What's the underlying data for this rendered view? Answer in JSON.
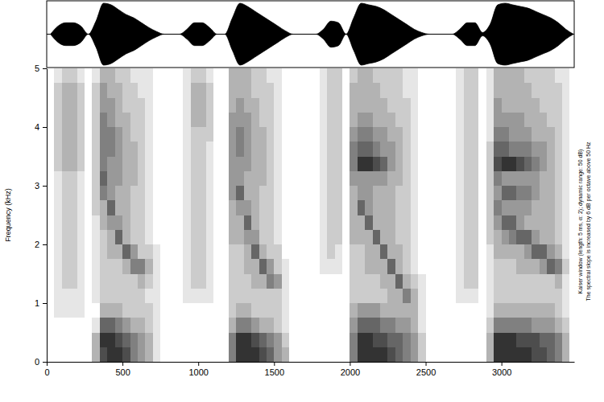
{
  "chart_data": {
    "type": "heatmap",
    "y_label": "Frequency (kHz)",
    "annotations": [
      "Kaiser window (length: 5 ms, α: 2); dynamic range: 50 dB)",
      "The spectral slope is increased by 6 dB per octave above 50 Hz"
    ],
    "xlim": [
      0,
      3480
    ],
    "xticks": [
      0,
      500,
      1000,
      1500,
      2000,
      2500,
      3000
    ],
    "ylim": [
      0,
      5
    ],
    "yticks": [
      0,
      1,
      2,
      3,
      4,
      5
    ],
    "zlim": [
      0,
      9
    ],
    "x_bins": [
      0,
      50,
      100,
      150,
      200,
      250,
      300,
      350,
      400,
      450,
      500,
      550,
      600,
      650,
      700,
      750,
      800,
      850,
      900,
      950,
      1000,
      1050,
      1100,
      1150,
      1200,
      1250,
      1300,
      1350,
      1400,
      1450,
      1500,
      1550,
      1600,
      1650,
      1700,
      1750,
      1800,
      1850,
      1900,
      1950,
      2000,
      2050,
      2100,
      2150,
      2200,
      2250,
      2300,
      2350,
      2400,
      2450,
      2500,
      2550,
      2600,
      2650,
      2700,
      2750,
      2800,
      2850,
      2900,
      2950,
      3000,
      3050,
      3100,
      3150,
      3200,
      3250,
      3300,
      3350,
      3400,
      3450,
      3500
    ],
    "y_bins": [
      0,
      0.25,
      0.5,
      0.75,
      1,
      1.25,
      1.5,
      1.75,
      2,
      2.25,
      2.5,
      2.75,
      3,
      3.25,
      3.5,
      3.75,
      4,
      4.25,
      4.5,
      4.75,
      5
    ],
    "z": [
      [
        0,
        0,
        0,
        0,
        0,
        0,
        0,
        0,
        0,
        0,
        0,
        0,
        0,
        0,
        0,
        0,
        0,
        0,
        0,
        0
      ],
      [
        0,
        0,
        0,
        1,
        1,
        1,
        1,
        1,
        1,
        1,
        1,
        1,
        1,
        2,
        2,
        2,
        2,
        2,
        2,
        1
      ],
      [
        0,
        0,
        0,
        1,
        1,
        2,
        2,
        2,
        2,
        2,
        2,
        2,
        2,
        3,
        3,
        3,
        3,
        3,
        3,
        2
      ],
      [
        0,
        0,
        0,
        1,
        1,
        2,
        2,
        2,
        2,
        2,
        2,
        2,
        2,
        3,
        3,
        3,
        3,
        3,
        3,
        2
      ],
      [
        0,
        0,
        0,
        1,
        1,
        1,
        1,
        1,
        1,
        1,
        1,
        1,
        1,
        2,
        2,
        2,
        2,
        2,
        2,
        1
      ],
      [
        0,
        0,
        0,
        0,
        0,
        0,
        0,
        0,
        0,
        0,
        0,
        0,
        0,
        0,
        0,
        0,
        0,
        0,
        0,
        0
      ],
      [
        3,
        3,
        1,
        0,
        1,
        1,
        1,
        1,
        1,
        1,
        2,
        2,
        2,
        2,
        2,
        2,
        2,
        2,
        2,
        1
      ],
      [
        7,
        8,
        6,
        3,
        2,
        2,
        2,
        2,
        2,
        3,
        3,
        5,
        6,
        5,
        5,
        5,
        5,
        4,
        4,
        3
      ],
      [
        8,
        8,
        6,
        3,
        2,
        2,
        2,
        3,
        3,
        4,
        6,
        4,
        4,
        4,
        5,
        5,
        4,
        4,
        3,
        3
      ],
      [
        8,
        7,
        5,
        3,
        2,
        2,
        2,
        3,
        6,
        4,
        3,
        3,
        4,
        4,
        4,
        4,
        3,
        3,
        3,
        2
      ],
      [
        7,
        6,
        4,
        2,
        2,
        2,
        3,
        6,
        3,
        3,
        3,
        3,
        3,
        3,
        3,
        3,
        3,
        2,
        2,
        2
      ],
      [
        5,
        5,
        3,
        2,
        2,
        2,
        5,
        4,
        2,
        2,
        2,
        2,
        3,
        3,
        3,
        2,
        2,
        2,
        2,
        1
      ],
      [
        4,
        4,
        3,
        2,
        2,
        3,
        5,
        2,
        2,
        2,
        2,
        2,
        2,
        2,
        2,
        2,
        2,
        2,
        1,
        1
      ],
      [
        3,
        3,
        2,
        2,
        1,
        2,
        3,
        2,
        1,
        1,
        1,
        1,
        1,
        1,
        1,
        1,
        1,
        1,
        1,
        1
      ],
      [
        1,
        1,
        1,
        1,
        1,
        1,
        1,
        1,
        0,
        0,
        0,
        0,
        0,
        0,
        0,
        0,
        0,
        0,
        0,
        0
      ],
      [
        0,
        0,
        0,
        0,
        0,
        0,
        0,
        0,
        0,
        0,
        0,
        0,
        0,
        0,
        0,
        0,
        0,
        0,
        0,
        0
      ],
      [
        0,
        0,
        0,
        0,
        0,
        0,
        0,
        0,
        0,
        0,
        0,
        0,
        0,
        0,
        0,
        0,
        0,
        0,
        0,
        0
      ],
      [
        0,
        0,
        0,
        0,
        0,
        0,
        0,
        0,
        0,
        0,
        0,
        0,
        0,
        0,
        0,
        0,
        0,
        0,
        0,
        0
      ],
      [
        0,
        0,
        0,
        0,
        1,
        1,
        1,
        1,
        1,
        1,
        1,
        1,
        1,
        1,
        1,
        1,
        1,
        1,
        1,
        1
      ],
      [
        0,
        0,
        0,
        0,
        1,
        2,
        2,
        2,
        2,
        2,
        2,
        2,
        2,
        2,
        2,
        2,
        3,
        3,
        3,
        2
      ],
      [
        0,
        0,
        0,
        0,
        1,
        2,
        2,
        2,
        2,
        2,
        2,
        2,
        2,
        2,
        2,
        2,
        3,
        3,
        3,
        2
      ],
      [
        0,
        0,
        0,
        0,
        1,
        1,
        1,
        1,
        1,
        1,
        1,
        1,
        1,
        1,
        1,
        2,
        2,
        2,
        2,
        1
      ],
      [
        0,
        0,
        0,
        0,
        0,
        0,
        0,
        0,
        0,
        0,
        0,
        0,
        0,
        0,
        0,
        0,
        0,
        0,
        0,
        0
      ],
      [
        0,
        0,
        0,
        0,
        0,
        0,
        0,
        0,
        0,
        0,
        0,
        0,
        0,
        0,
        0,
        0,
        0,
        0,
        0,
        0
      ],
      [
        5,
        5,
        3,
        2,
        2,
        2,
        2,
        2,
        3,
        3,
        3,
        4,
        4,
        4,
        4,
        4,
        4,
        3,
        3,
        3
      ],
      [
        8,
        8,
        5,
        3,
        2,
        2,
        2,
        2,
        3,
        3,
        4,
        6,
        4,
        4,
        5,
        5,
        4,
        4,
        3,
        3
      ],
      [
        8,
        8,
        5,
        3,
        2,
        2,
        3,
        3,
        4,
        6,
        4,
        3,
        3,
        4,
        4,
        4,
        4,
        3,
        3,
        3
      ],
      [
        8,
        7,
        4,
        2,
        2,
        3,
        3,
        6,
        4,
        3,
        3,
        3,
        3,
        3,
        3,
        3,
        3,
        3,
        2,
        2
      ],
      [
        7,
        6,
        3,
        2,
        2,
        3,
        6,
        3,
        2,
        2,
        2,
        2,
        3,
        3,
        3,
        3,
        2,
        2,
        2,
        2
      ],
      [
        6,
        5,
        3,
        2,
        2,
        5,
        4,
        2,
        2,
        2,
        2,
        2,
        2,
        2,
        2,
        2,
        2,
        2,
        2,
        1
      ],
      [
        4,
        4,
        2,
        2,
        2,
        4,
        2,
        2,
        1,
        1,
        1,
        1,
        1,
        1,
        1,
        1,
        1,
        1,
        1,
        1
      ],
      [
        3,
        2,
        1,
        1,
        1,
        1,
        1,
        0,
        0,
        0,
        0,
        0,
        0,
        0,
        0,
        0,
        0,
        0,
        0,
        0
      ],
      [
        0,
        0,
        0,
        0,
        0,
        0,
        0,
        0,
        0,
        0,
        0,
        0,
        0,
        0,
        0,
        0,
        0,
        0,
        0,
        0
      ],
      [
        0,
        0,
        0,
        0,
        0,
        0,
        0,
        0,
        0,
        0,
        0,
        0,
        0,
        0,
        0,
        0,
        0,
        0,
        0,
        0
      ],
      [
        0,
        0,
        0,
        0,
        0,
        0,
        0,
        0,
        0,
        0,
        0,
        0,
        0,
        0,
        0,
        0,
        0,
        0,
        0,
        0
      ],
      [
        0,
        0,
        0,
        0,
        0,
        0,
        0,
        0,
        0,
        0,
        0,
        0,
        0,
        0,
        0,
        0,
        0,
        0,
        0,
        0
      ],
      [
        0,
        0,
        0,
        0,
        0,
        0,
        1,
        1,
        1,
        1,
        1,
        1,
        1,
        1,
        1,
        1,
        1,
        1,
        1,
        1
      ],
      [
        0,
        0,
        0,
        0,
        0,
        0,
        1,
        2,
        2,
        2,
        2,
        2,
        2,
        2,
        2,
        2,
        2,
        2,
        2,
        2
      ],
      [
        0,
        0,
        0,
        0,
        0,
        0,
        1,
        1,
        2,
        2,
        2,
        2,
        2,
        2,
        2,
        2,
        2,
        2,
        2,
        2
      ],
      [
        0,
        0,
        0,
        0,
        0,
        0,
        0,
        0,
        0,
        0,
        0,
        0,
        0,
        0,
        0,
        0,
        0,
        0,
        0,
        0
      ],
      [
        5,
        5,
        4,
        3,
        2,
        2,
        2,
        2,
        3,
        3,
        3,
        3,
        4,
        5,
        5,
        4,
        3,
        3,
        3,
        2
      ],
      [
        8,
        8,
        6,
        4,
        2,
        2,
        2,
        2,
        3,
        3,
        6,
        4,
        4,
        8,
        6,
        5,
        4,
        3,
        3,
        3
      ],
      [
        8,
        8,
        6,
        4,
        2,
        2,
        3,
        3,
        3,
        6,
        4,
        4,
        4,
        8,
        6,
        5,
        4,
        3,
        3,
        3
      ],
      [
        8,
        7,
        6,
        4,
        2,
        2,
        3,
        3,
        6,
        3,
        3,
        3,
        4,
        7,
        5,
        4,
        3,
        3,
        3,
        2
      ],
      [
        8,
        7,
        5,
        3,
        2,
        3,
        3,
        6,
        3,
        3,
        3,
        3,
        4,
        6,
        4,
        4,
        3,
        3,
        2,
        2
      ],
      [
        7,
        6,
        5,
        3,
        3,
        3,
        6,
        3,
        3,
        3,
        3,
        3,
        3,
        4,
        4,
        3,
        3,
        2,
        2,
        2
      ],
      [
        6,
        6,
        4,
        3,
        3,
        6,
        3,
        3,
        2,
        2,
        2,
        2,
        3,
        3,
        3,
        3,
        2,
        2,
        2,
        2
      ],
      [
        5,
        5,
        4,
        3,
        5,
        3,
        2,
        2,
        2,
        2,
        2,
        2,
        2,
        2,
        2,
        2,
        2,
        2,
        1,
        1
      ],
      [
        4,
        4,
        3,
        3,
        3,
        2,
        1,
        1,
        1,
        1,
        1,
        1,
        1,
        1,
        1,
        1,
        1,
        1,
        1,
        1
      ],
      [
        2,
        2,
        1,
        1,
        1,
        1,
        0,
        0,
        0,
        0,
        0,
        0,
        0,
        0,
        0,
        0,
        0,
        0,
        0,
        0
      ],
      [
        0,
        0,
        0,
        0,
        0,
        0,
        0,
        0,
        0,
        0,
        0,
        0,
        0,
        0,
        0,
        0,
        0,
        0,
        0,
        0
      ],
      [
        0,
        0,
        0,
        0,
        0,
        0,
        0,
        0,
        0,
        0,
        0,
        0,
        0,
        0,
        0,
        0,
        0,
        0,
        0,
        0
      ],
      [
        0,
        0,
        0,
        0,
        0,
        0,
        0,
        0,
        0,
        0,
        0,
        0,
        0,
        0,
        0,
        0,
        0,
        0,
        0,
        0
      ],
      [
        0,
        0,
        0,
        0,
        0,
        0,
        0,
        0,
        0,
        0,
        0,
        0,
        0,
        0,
        0,
        0,
        0,
        0,
        0,
        0
      ],
      [
        0,
        0,
        0,
        0,
        1,
        1,
        1,
        1,
        1,
        1,
        1,
        1,
        1,
        1,
        1,
        1,
        1,
        1,
        1,
        1
      ],
      [
        0,
        0,
        0,
        0,
        1,
        2,
        2,
        2,
        2,
        2,
        2,
        2,
        2,
        2,
        2,
        2,
        2,
        2,
        2,
        2
      ],
      [
        0,
        0,
        0,
        0,
        1,
        2,
        2,
        2,
        2,
        2,
        2,
        2,
        2,
        2,
        2,
        2,
        2,
        2,
        2,
        2
      ],
      [
        0,
        0,
        0,
        0,
        0,
        0,
        0,
        0,
        0,
        0,
        0,
        0,
        0,
        0,
        0,
        0,
        0,
        0,
        0,
        0
      ],
      [
        3,
        3,
        2,
        1,
        1,
        1,
        1,
        1,
        2,
        2,
        2,
        2,
        2,
        2,
        2,
        1,
        1,
        1,
        1,
        1
      ],
      [
        8,
        8,
        5,
        3,
        2,
        2,
        2,
        3,
        3,
        4,
        5,
        4,
        5,
        7,
        6,
        5,
        4,
        4,
        3,
        3
      ],
      [
        8,
        8,
        5,
        3,
        2,
        2,
        2,
        3,
        4,
        6,
        4,
        6,
        4,
        8,
        6,
        5,
        4,
        3,
        3,
        3
      ],
      [
        8,
        8,
        5,
        3,
        2,
        2,
        2,
        3,
        5,
        6,
        4,
        6,
        4,
        8,
        5,
        4,
        4,
        3,
        3,
        3
      ],
      [
        8,
        7,
        5,
        3,
        2,
        2,
        3,
        3,
        6,
        4,
        4,
        5,
        4,
        7,
        5,
        4,
        4,
        3,
        3,
        3
      ],
      [
        8,
        7,
        5,
        3,
        2,
        2,
        3,
        4,
        6,
        3,
        4,
        5,
        4,
        6,
        5,
        4,
        3,
        3,
        3,
        2
      ],
      [
        7,
        7,
        4,
        3,
        2,
        2,
        3,
        6,
        4,
        3,
        3,
        4,
        4,
        5,
        4,
        3,
        3,
        3,
        2,
        2
      ],
      [
        7,
        6,
        4,
        3,
        2,
        2,
        4,
        6,
        3,
        3,
        3,
        3,
        3,
        4,
        4,
        3,
        3,
        2,
        2,
        2
      ],
      [
        6,
        6,
        4,
        3,
        2,
        2,
        6,
        4,
        3,
        3,
        3,
        3,
        3,
        3,
        3,
        3,
        2,
        2,
        2,
        2
      ],
      [
        5,
        5,
        3,
        2,
        2,
        3,
        5,
        3,
        2,
        2,
        2,
        2,
        2,
        2,
        2,
        2,
        2,
        2,
        2,
        1
      ],
      [
        3,
        3,
        2,
        1,
        1,
        1,
        2,
        1,
        1,
        1,
        1,
        1,
        1,
        1,
        1,
        1,
        1,
        1,
        1,
        1
      ],
      [
        0,
        0,
        0,
        0,
        0,
        0,
        0,
        0,
        0,
        0,
        0,
        0,
        0,
        0,
        0,
        0,
        0,
        0,
        0,
        0
      ]
    ],
    "waveform": {
      "ylim": [
        -1,
        1
      ],
      "values": [
        0,
        0.25,
        0.35,
        0.35,
        0.25,
        0,
        0.4,
        0.95,
        0.9,
        0.75,
        0.6,
        0.5,
        0.35,
        0.2,
        0.08,
        0,
        0,
        0,
        0.15,
        0.35,
        0.35,
        0.2,
        0,
        0,
        0.5,
        0.95,
        0.85,
        0.7,
        0.55,
        0.4,
        0.25,
        0.1,
        0,
        0,
        0,
        0,
        0.15,
        0.4,
        0.35,
        0,
        0.5,
        0.95,
        0.9,
        0.85,
        0.75,
        0.6,
        0.45,
        0.3,
        0.15,
        0.05,
        0,
        0,
        0,
        0,
        0.15,
        0.35,
        0.35,
        0.05,
        0.3,
        0.9,
        0.95,
        0.9,
        0.85,
        0.8,
        0.7,
        0.6,
        0.5,
        0.35,
        0.15,
        0
      ]
    }
  }
}
